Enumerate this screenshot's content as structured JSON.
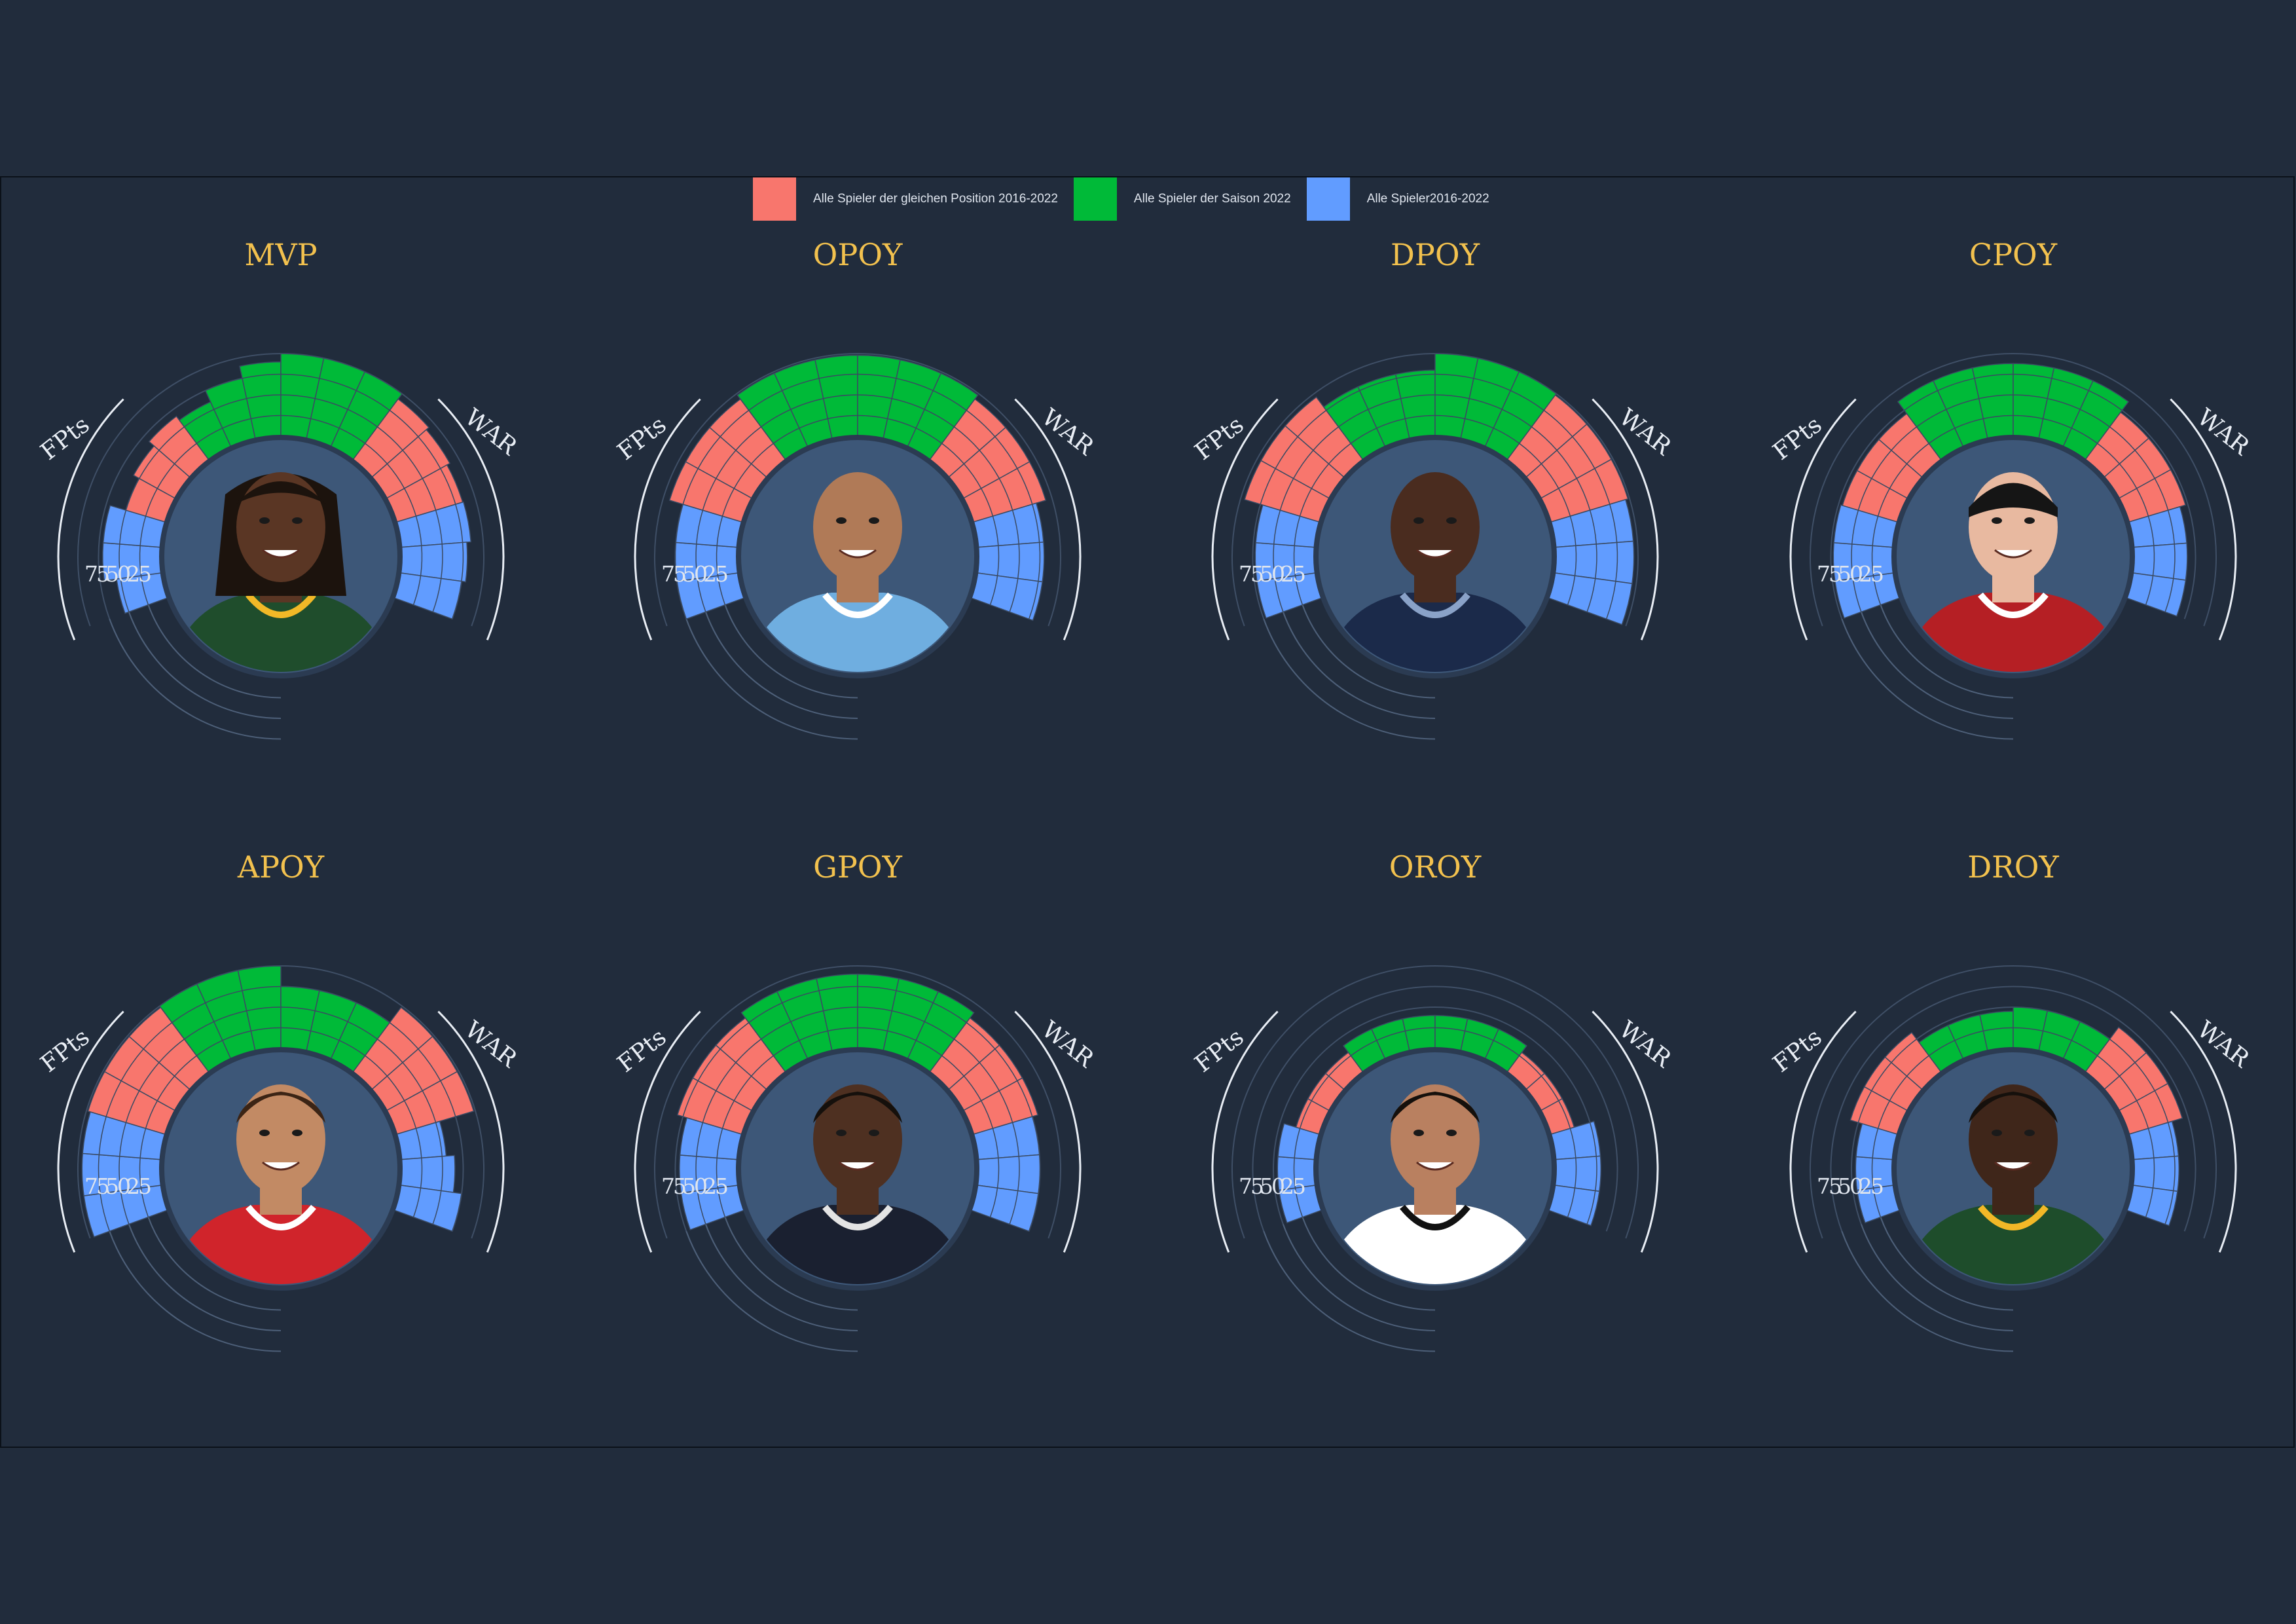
{
  "legend": [
    {
      "label": "Alle Spieler der gleichen Position 2016-2022",
      "color": "#f8766d"
    },
    {
      "label": "Alle Spieler der Saison 2022",
      "color": "#00ba38"
    },
    {
      "label": "Alle Spieler2016-2022",
      "color": "#619cff"
    }
  ],
  "axis_labels": {
    "left": "FPts",
    "right": "WAR"
  },
  "tick_labels": [
    "75",
    "50",
    "25"
  ],
  "chart_data": {
    "type": "bar",
    "layout": "radial half-circle bar chart per award, 6 groups of 3 sub-bars, player photo in center",
    "scale_max": 100,
    "group_order": [
      "blue",
      "red",
      "green",
      "green",
      "red",
      "blue"
    ],
    "panels": [
      {
        "award": "MVP",
        "values": [
          [
            55,
            70,
            70
          ],
          [
            50,
            58,
            66
          ],
          [
            60,
            75,
            90
          ],
          [
            100,
            100,
            100
          ],
          [
            92,
            88,
            84
          ],
          [
            85,
            80,
            75
          ]
        ]
      },
      {
        "award": "OPOY",
        "values": [
          [
            75,
            75,
            75
          ],
          [
            92,
            92,
            92
          ],
          [
            98,
            98,
            98
          ],
          [
            98,
            98,
            98
          ],
          [
            92,
            92,
            92
          ],
          [
            80,
            80,
            80
          ]
        ]
      },
      {
        "award": "DPOY",
        "values": [
          [
            72,
            72,
            72
          ],
          [
            95,
            95,
            95
          ],
          [
            80,
            80,
            80
          ],
          [
            100,
            100,
            100
          ],
          [
            98,
            98,
            98
          ],
          [
            95,
            95,
            95
          ]
        ]
      },
      {
        "award": "CPOY",
        "values": [
          [
            72,
            72,
            72
          ],
          [
            70,
            70,
            70
          ],
          [
            88,
            88,
            88
          ],
          [
            88,
            88,
            88
          ],
          [
            72,
            72,
            72
          ],
          [
            65,
            65,
            65
          ]
        ]
      },
      {
        "award": "APOY",
        "values": [
          [
            95,
            95,
            95
          ],
          [
            98,
            98,
            98
          ],
          [
            100,
            100,
            100
          ],
          [
            75,
            75,
            75
          ],
          [
            98,
            98,
            98
          ],
          [
            55,
            65,
            75
          ]
        ]
      },
      {
        "award": "GPOY",
        "values": [
          [
            70,
            70,
            70
          ],
          [
            82,
            82,
            82
          ],
          [
            90,
            90,
            90
          ],
          [
            90,
            90,
            90
          ],
          [
            82,
            82,
            82
          ],
          [
            75,
            75,
            75
          ]
        ]
      },
      {
        "award": "OROY",
        "values": [
          [
            45,
            45,
            45
          ],
          [
            30,
            30,
            30
          ],
          [
            40,
            40,
            40
          ],
          [
            40,
            40,
            40
          ],
          [
            30,
            30,
            30
          ],
          [
            55,
            55,
            55
          ]
        ]
      },
      {
        "award": "DROY",
        "values": [
          [
            45,
            45,
            45
          ],
          [
            60,
            60,
            60
          ],
          [
            45,
            45,
            45
          ],
          [
            50,
            50,
            50
          ],
          [
            68,
            68,
            68
          ],
          [
            55,
            55,
            55
          ]
        ]
      }
    ]
  },
  "players": [
    {
      "skin": "#5a3624",
      "hair": "dreads",
      "jersey": "#1f4d2c",
      "trim": "#f2b827"
    },
    {
      "skin": "#b07a57",
      "hair": "bald",
      "jersey": "#6faee0",
      "trim": "#ffffff"
    },
    {
      "skin": "#4a2c1f",
      "hair": "bald",
      "jersey": "#1b2a4a",
      "trim": "#8aa2c8"
    },
    {
      "skin": "#e8b9a0",
      "hair": "headband",
      "jersey": "#b51f24",
      "trim": "#ffffff"
    },
    {
      "skin": "#c28a64",
      "hair": "curly",
      "jersey": "#d0242b",
      "trim": "#ffffff"
    },
    {
      "skin": "#4e3021",
      "hair": "short",
      "jersey": "#1a2030",
      "trim": "#e4e4e4"
    },
    {
      "skin": "#b98060",
      "hair": "short",
      "jersey": "#ffffff",
      "trim": "#111111"
    },
    {
      "skin": "#3f261a",
      "hair": "short",
      "jersey": "#1e4d2b",
      "trim": "#f2b827"
    }
  ]
}
